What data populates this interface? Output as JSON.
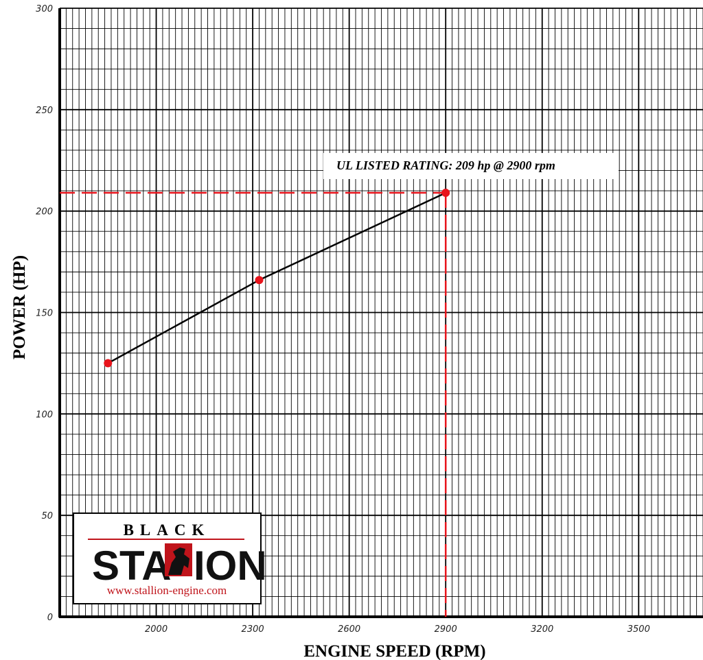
{
  "chart_data": {
    "type": "line",
    "xlabel": "ENGINE SPEED (RPM)",
    "ylabel": "POWER (HP)",
    "xlim": [
      1700,
      3700
    ],
    "ylim": [
      0,
      300
    ],
    "x_ticks": [
      2000,
      2300,
      2600,
      2900,
      3200,
      3500
    ],
    "y_ticks": [
      0,
      50,
      100,
      150,
      200,
      250,
      300
    ],
    "grid": true,
    "series": [
      {
        "x": [
          1850,
          2320,
          2900
        ],
        "y": [
          125,
          166,
          209
        ],
        "color": "#000000",
        "marker_color": "#e8141c"
      }
    ],
    "annotation": {
      "text": "UL LISTED RATING: 209 hp @ 2900 rpm",
      "x": 2900,
      "y": 209,
      "line_color": "#e8141c"
    }
  },
  "logo": {
    "top_word": "BLACK",
    "main_word_left": "STA",
    "main_word_right": "ION",
    "url": "www.stallion-engine.com",
    "accent_color": "#c0141b"
  }
}
